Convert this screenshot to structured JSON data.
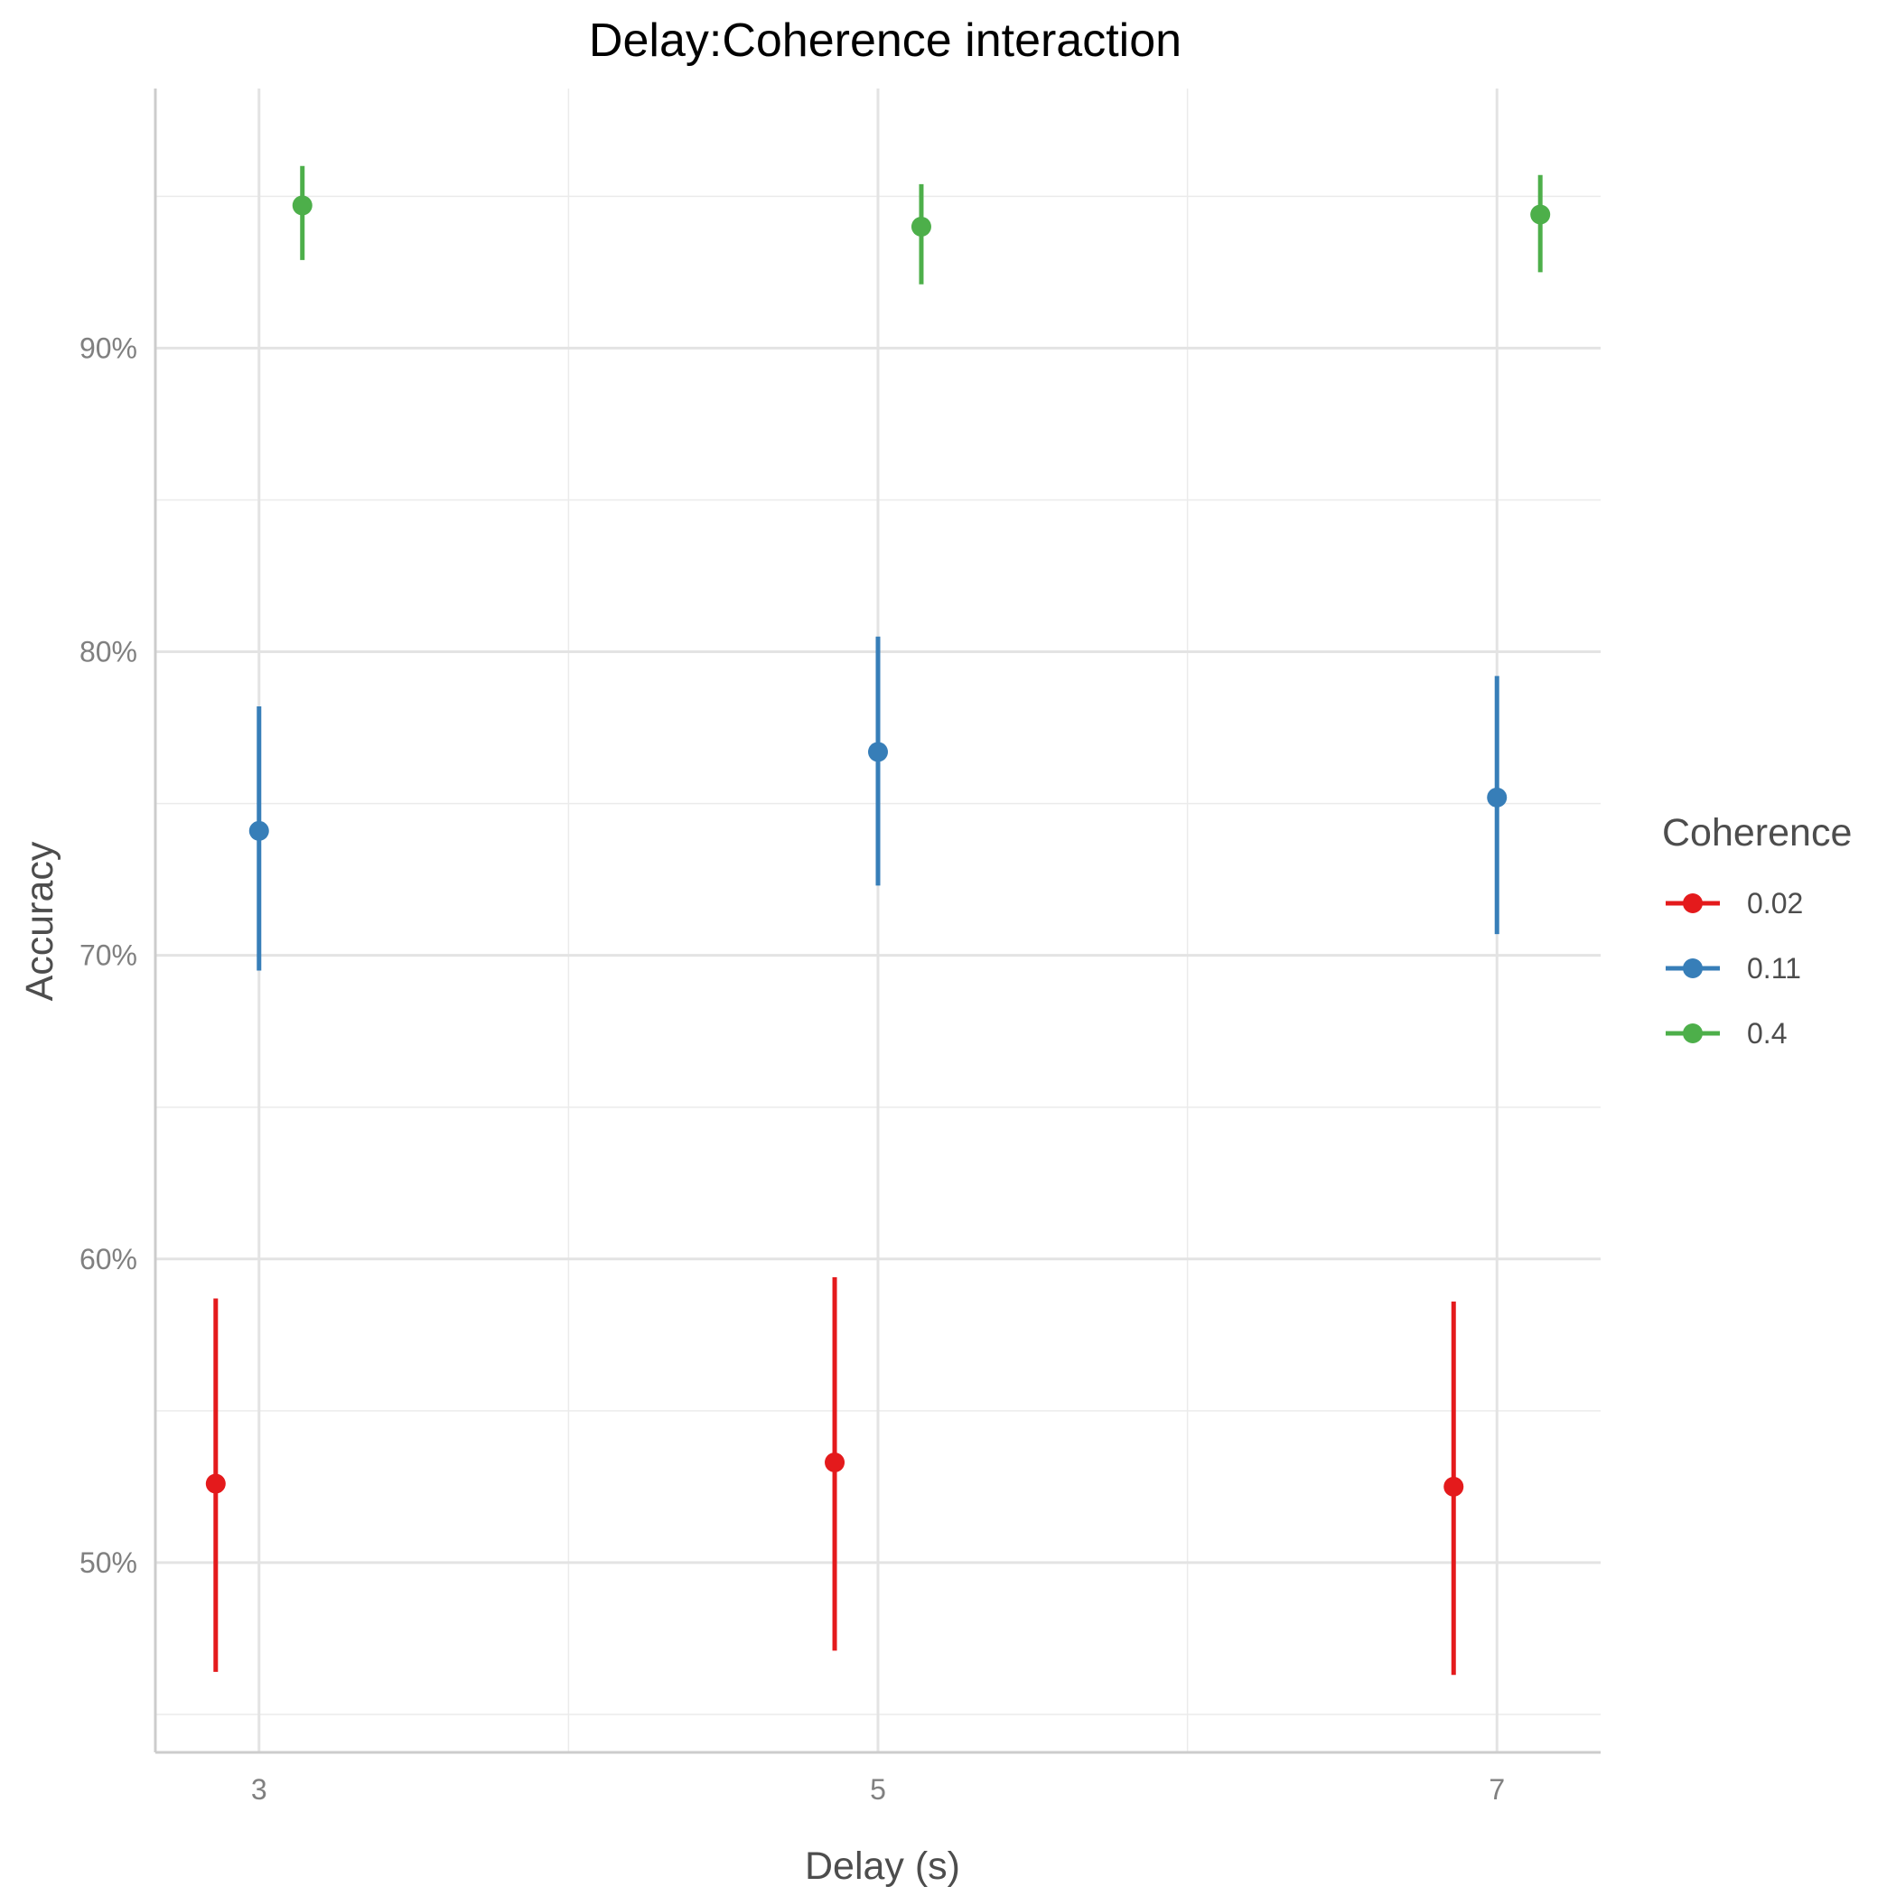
{
  "chart_data": {
    "type": "scatter",
    "title": "Delay:Coherence interaction",
    "xlabel": "Delay (s)",
    "ylabel": "Accuracy",
    "x_ticks": [
      3,
      5,
      7
    ],
    "x_tick_labels": [
      "3",
      "5",
      "7"
    ],
    "xlim": [
      2.665,
      7.335
    ],
    "y_ticks": [
      0.5,
      0.6,
      0.7,
      0.8,
      0.9
    ],
    "y_tick_labels": [
      "50%",
      "60%",
      "70%",
      "80%",
      "90%"
    ],
    "ylim": [
      0.4375,
      0.9855
    ],
    "grid": true,
    "legend_title": "Coherence",
    "legend_position": "right",
    "series": [
      {
        "name": "0.02",
        "color": "#E41A1C",
        "points": [
          {
            "x": 3,
            "y": 0.526,
            "lower": 0.464,
            "upper": 0.587
          },
          {
            "x": 5,
            "y": 0.533,
            "lower": 0.471,
            "upper": 0.594
          },
          {
            "x": 7,
            "y": 0.525,
            "lower": 0.463,
            "upper": 0.586
          }
        ]
      },
      {
        "name": "0.11",
        "color": "#377EB8",
        "points": [
          {
            "x": 3,
            "y": 0.741,
            "lower": 0.695,
            "upper": 0.782
          },
          {
            "x": 5,
            "y": 0.767,
            "lower": 0.723,
            "upper": 0.805
          },
          {
            "x": 7,
            "y": 0.752,
            "lower": 0.707,
            "upper": 0.792
          }
        ]
      },
      {
        "name": "0.4",
        "color": "#4DAF4A",
        "points": [
          {
            "x": 3,
            "y": 0.947,
            "lower": 0.929,
            "upper": 0.96
          },
          {
            "x": 5,
            "y": 0.94,
            "lower": 0.921,
            "upper": 0.954
          },
          {
            "x": 7,
            "y": 0.944,
            "lower": 0.925,
            "upper": 0.957
          }
        ]
      }
    ]
  }
}
